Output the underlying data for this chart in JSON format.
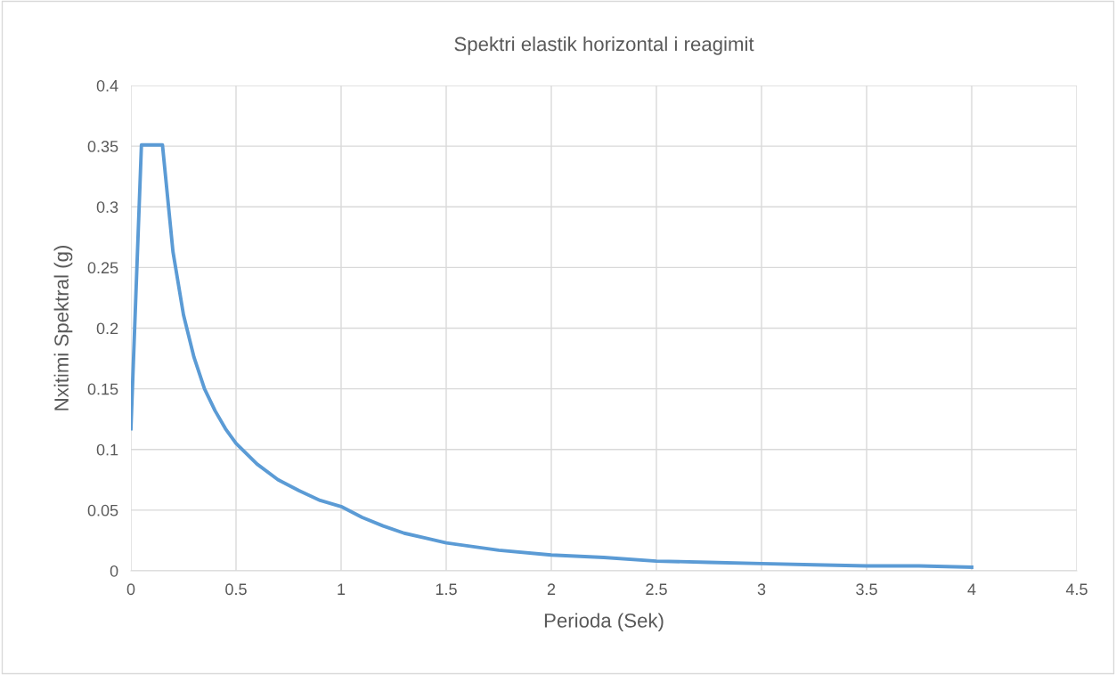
{
  "chart_data": {
    "type": "line",
    "title": "Spektri elastik horizontal i reagimit",
    "xlabel": "Perioda (Sek)",
    "ylabel": "Nxitimi Spektral (g)",
    "x": [
      0,
      0.05,
      0.15,
      0.2,
      0.25,
      0.3,
      0.35,
      0.4,
      0.45,
      0.5,
      0.6,
      0.7,
      0.8,
      0.9,
      1.0,
      1.1,
      1.2,
      1.3,
      1.4,
      1.5,
      1.75,
      2.0,
      2.25,
      2.5,
      2.75,
      3.0,
      3.25,
      3.5,
      3.75,
      4.0
    ],
    "series": [
      {
        "color": "#5b9bd5",
        "values": [
          0.117,
          0.351,
          0.351,
          0.263,
          0.211,
          0.176,
          0.15,
          0.132,
          0.117,
          0.105,
          0.088,
          0.075,
          0.066,
          0.058,
          0.053,
          0.044,
          0.037,
          0.031,
          0.027,
          0.023,
          0.017,
          0.013,
          0.011,
          0.008,
          0.007,
          0.006,
          0.005,
          0.004,
          0.004,
          0.003
        ]
      }
    ],
    "xlim": [
      0,
      4.5
    ],
    "xticks": [
      0,
      0.5,
      1,
      1.5,
      2,
      2.5,
      3,
      3.5,
      4,
      4.5
    ],
    "ylim": [
      0,
      0.4
    ],
    "yticks": [
      0,
      0.05,
      0.1,
      0.15,
      0.2,
      0.25,
      0.3,
      0.35,
      0.4
    ],
    "grid": true,
    "marker": "none",
    "line_style": "solid"
  }
}
